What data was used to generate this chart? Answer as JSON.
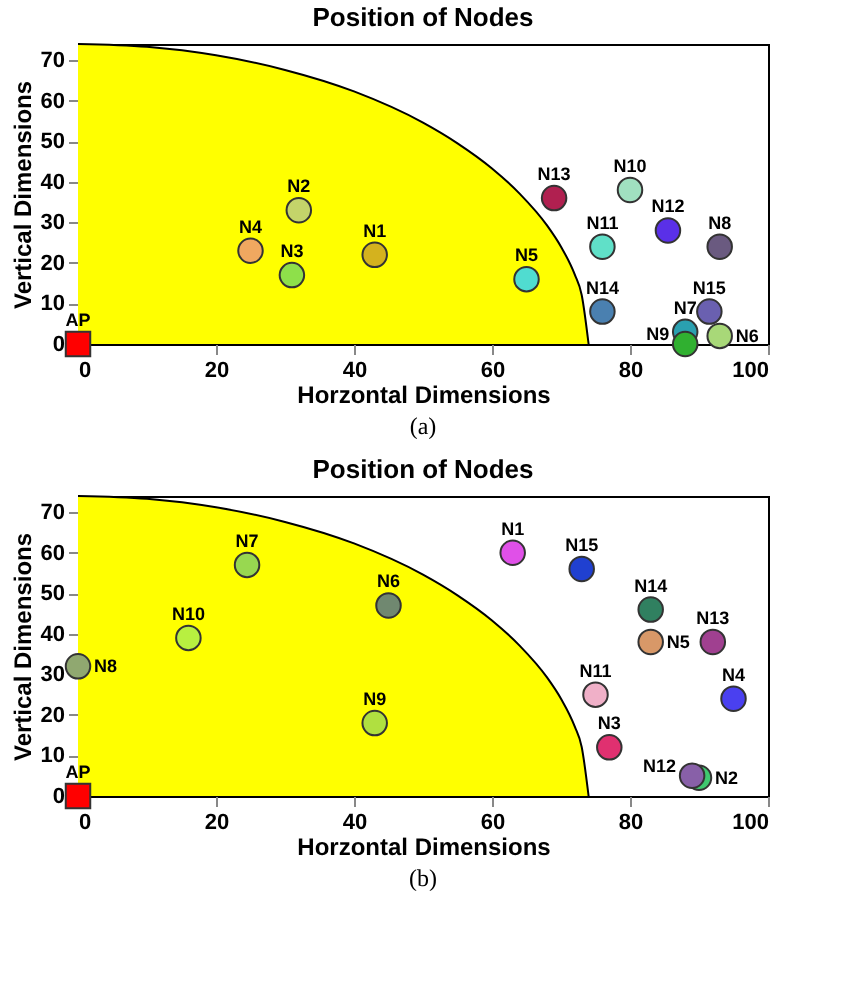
{
  "chart_data": [
    {
      "type": "scatter",
      "title": "Position of Nodes",
      "xlabel": "Horzontal Dimensions",
      "ylabel": "Vertical Dimensions",
      "xlim": [
        0,
        100
      ],
      "ylim": [
        0,
        74
      ],
      "xticks": [
        0,
        20,
        40,
        60,
        80,
        100
      ],
      "yticks": [
        0,
        10,
        20,
        30,
        40,
        50,
        60,
        70
      ],
      "grid": false,
      "marker": "circle",
      "annotations": [
        "(a)"
      ],
      "series": [
        {
          "type": "area",
          "marker": "none",
          "color": "#ffff00",
          "x": [
            0,
            10,
            20,
            30,
            40,
            50,
            55,
            60,
            64,
            68,
            70,
            72,
            73,
            74
          ],
          "values": [
            74,
            73.3,
            71.2,
            67.6,
            62.3,
            54.6,
            49.5,
            43.3,
            37.1,
            29.2,
            24.0,
            17.1,
            12.1,
            0
          ]
        },
        {
          "name": "AP",
          "marker": "square",
          "color": "#ff0000",
          "x": [
            0
          ],
          "values": [
            0
          ]
        },
        {
          "name": "N1",
          "color": "#d4b21e",
          "x": [
            43
          ],
          "values": [
            22
          ]
        },
        {
          "name": "N2",
          "color": "#c4d46a",
          "x": [
            32
          ],
          "values": [
            33
          ]
        },
        {
          "name": "N3",
          "color": "#8ee04a",
          "x": [
            31
          ],
          "values": [
            17
          ]
        },
        {
          "name": "N4",
          "color": "#f0a860",
          "x": [
            25
          ],
          "values": [
            23
          ]
        },
        {
          "name": "N5",
          "color": "#50dcd0",
          "x": [
            65
          ],
          "values": [
            16
          ]
        },
        {
          "name": "N6",
          "color": "#a8d878",
          "x": [
            93
          ],
          "values": [
            2
          ]
        },
        {
          "name": "N7",
          "color": "#2aa0b0",
          "x": [
            88
          ],
          "values": [
            3
          ]
        },
        {
          "name": "N8",
          "color": "#6a5a80",
          "x": [
            93
          ],
          "values": [
            24
          ]
        },
        {
          "name": "N9",
          "color": "#30b030",
          "x": [
            88
          ],
          "values": [
            0
          ]
        },
        {
          "name": "N10",
          "color": "#a0e0c0",
          "x": [
            80
          ],
          "values": [
            38
          ]
        },
        {
          "name": "N11",
          "color": "#60e0c8",
          "x": [
            76
          ],
          "values": [
            24
          ]
        },
        {
          "name": "N12",
          "color": "#5a30e8",
          "x": [
            85.5
          ],
          "values": [
            28
          ]
        },
        {
          "name": "N13",
          "color": "#b02050",
          "x": [
            69
          ],
          "values": [
            36
          ]
        },
        {
          "name": "N14",
          "color": "#4a80b0",
          "x": [
            76
          ],
          "values": [
            8
          ]
        },
        {
          "name": "N15",
          "color": "#6a60b0",
          "x": [
            91.5
          ],
          "values": [
            8
          ]
        }
      ]
    },
    {
      "type": "scatter",
      "title": "Position of Nodes",
      "xlabel": "Horzontal Dimensions",
      "ylabel": "Vertical Dimensions",
      "xlim": [
        0,
        100
      ],
      "ylim": [
        0,
        74
      ],
      "xticks": [
        0,
        20,
        40,
        60,
        80,
        100
      ],
      "yticks": [
        0,
        10,
        20,
        30,
        40,
        50,
        60,
        70
      ],
      "grid": false,
      "marker": "circle",
      "annotations": [
        "(b)"
      ],
      "series": [
        {
          "type": "area",
          "marker": "none",
          "color": "#ffff00",
          "x": [
            0,
            10,
            20,
            30,
            40,
            50,
            55,
            60,
            64,
            68,
            70,
            72,
            73,
            74
          ],
          "values": [
            74,
            73.3,
            71.2,
            67.6,
            62.3,
            54.6,
            49.5,
            43.3,
            37.1,
            29.2,
            24.0,
            17.1,
            12.1,
            0
          ]
        },
        {
          "name": "AP",
          "marker": "square",
          "color": "#ff0000",
          "x": [
            0
          ],
          "values": [
            0
          ]
        },
        {
          "name": "N1",
          "color": "#e050e8",
          "x": [
            63
          ],
          "values": [
            60
          ]
        },
        {
          "name": "N2",
          "color": "#40c870",
          "x": [
            90
          ],
          "values": [
            4.5
          ]
        },
        {
          "name": "N3",
          "color": "#e03070",
          "x": [
            77
          ],
          "values": [
            12
          ]
        },
        {
          "name": "N4",
          "color": "#4a40f0",
          "x": [
            95
          ],
          "values": [
            24
          ]
        },
        {
          "name": "N5",
          "color": "#d89868",
          "x": [
            83
          ],
          "values": [
            38
          ]
        },
        {
          "name": "N6",
          "color": "#708870",
          "x": [
            45
          ],
          "values": [
            47
          ]
        },
        {
          "name": "N7",
          "color": "#98d850",
          "x": [
            24.5
          ],
          "values": [
            57
          ]
        },
        {
          "name": "N8",
          "color": "#90a870",
          "x": [
            0
          ],
          "values": [
            32
          ]
        },
        {
          "name": "N9",
          "color": "#b0e040",
          "x": [
            43
          ],
          "values": [
            18
          ]
        },
        {
          "name": "N10",
          "color": "#b8f040",
          "x": [
            16
          ],
          "values": [
            39
          ]
        },
        {
          "name": "N11",
          "color": "#f0b0c8",
          "x": [
            75
          ],
          "values": [
            25
          ]
        },
        {
          "name": "N12",
          "color": "#8860a8",
          "x": [
            89
          ],
          "values": [
            5
          ]
        },
        {
          "name": "N13",
          "color": "#a04090",
          "x": [
            92
          ],
          "values": [
            38
          ]
        },
        {
          "name": "N14",
          "color": "#308060",
          "x": [
            83
          ],
          "values": [
            46
          ]
        },
        {
          "name": "N15",
          "color": "#2040d0",
          "x": [
            73
          ],
          "values": [
            56
          ]
        }
      ]
    }
  ]
}
